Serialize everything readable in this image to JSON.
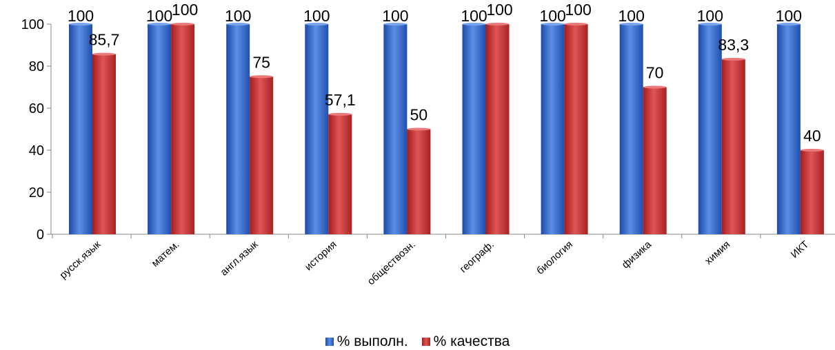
{
  "chart_data": {
    "type": "bar",
    "categories": [
      "русск.язык",
      "матем.",
      "англ.язык",
      "история",
      "обществозн.",
      "географ.",
      "биология",
      "физика",
      "химия",
      "ИКТ"
    ],
    "series": [
      {
        "name": "% выполн.",
        "color": "#2e63c4",
        "values": [
          100,
          100,
          100,
          100,
          100,
          100,
          100,
          100,
          100,
          100
        ],
        "labels": [
          "100",
          "100",
          "100",
          "100",
          "100",
          "100",
          "100",
          "100",
          "100",
          "100"
        ]
      },
      {
        "name": "% качества",
        "color": "#c42a2a",
        "values": [
          85.7,
          100,
          75,
          57.1,
          50,
          100,
          100,
          70,
          83.3,
          40
        ],
        "labels": [
          "85,7",
          "100",
          "75",
          "57,1",
          "50",
          "100",
          "100",
          "70",
          "83,3",
          "40"
        ]
      }
    ],
    "yticks": [
      "0",
      "20",
      "40",
      "60",
      "80",
      "100"
    ],
    "ylim": [
      0,
      100
    ],
    "grid": false,
    "legend_position": "bottom"
  }
}
